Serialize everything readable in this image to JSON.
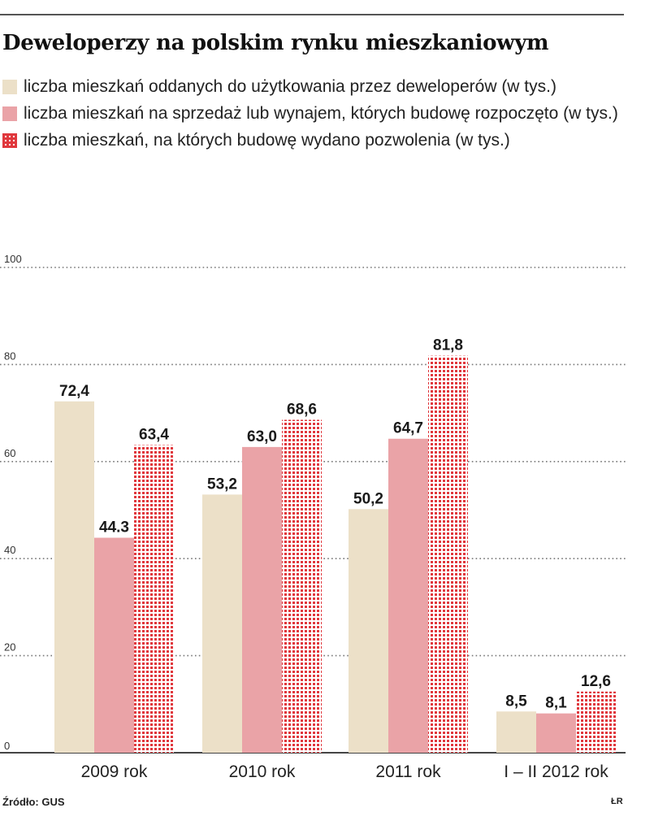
{
  "chart_data": {
    "type": "bar",
    "title": "Deweloperzy na polskim rynku mieszkaniowym",
    "categories": [
      "2009 rok",
      "2010 rok",
      "2011 rok",
      "I – II 2012 rok"
    ],
    "series": [
      {
        "name": "liczba mieszkań oddanych do użytkowania przez deweloperów (w tys.)",
        "values": [
          72.4,
          53.2,
          50.2,
          8.5
        ],
        "labels": [
          "72,4",
          "53,2",
          "50,2",
          "8,5"
        ],
        "color": "#ece0c8",
        "pattern": "solid"
      },
      {
        "name": "liczba mieszkań na sprzedaż lub wynajem, których budowę rozpoczęto (w tys.)",
        "values": [
          44.3,
          63.0,
          64.7,
          8.1
        ],
        "labels": [
          "44.3",
          "63,0",
          "64,7",
          "8,1"
        ],
        "color": "#eaa3a7",
        "pattern": "solid"
      },
      {
        "name": "liczba mieszkań, na których budowę wydano pozwolenia (w tys.)",
        "values": [
          63.4,
          68.6,
          81.8,
          12.6
        ],
        "labels": [
          "63,4",
          "68,6",
          "81,8",
          "12,6"
        ],
        "color": "#e0383d",
        "pattern": "dotted-grid"
      }
    ],
    "ylim": [
      0,
      100
    ],
    "yticks": [
      0,
      20,
      40,
      60,
      80,
      100
    ],
    "grid": true,
    "legend": "top"
  },
  "source": "Źródło: GUS",
  "credit": "ŁR"
}
